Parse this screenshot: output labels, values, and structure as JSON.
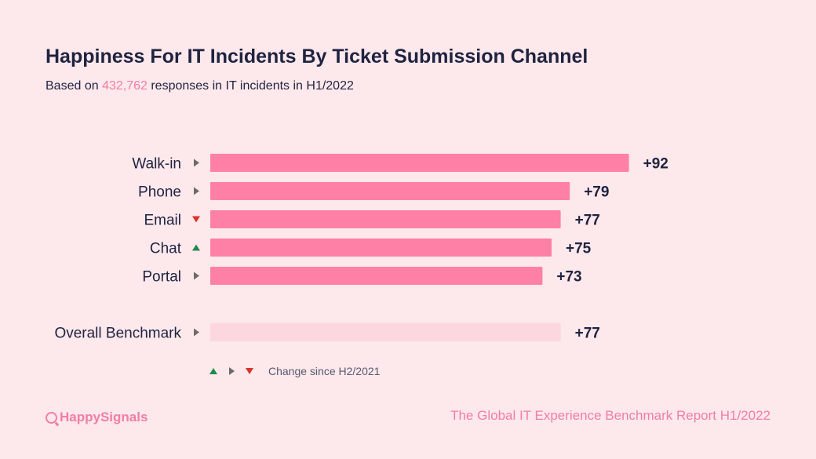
{
  "header": {
    "title": "Happiness For IT Incidents By Ticket Submission Channel",
    "subtitle_prefix": "Based on ",
    "subtitle_highlight": "432,762",
    "subtitle_suffix": " responses in IT incidents in H1/2022"
  },
  "chart_data": {
    "type": "bar",
    "orientation": "horizontal",
    "categories": [
      "Walk-in",
      "Phone",
      "Email",
      "Chat",
      "Portal"
    ],
    "values": [
      92,
      79,
      77,
      75,
      73
    ],
    "value_labels": [
      "+92",
      "+79",
      "+77",
      "+75",
      "+73"
    ],
    "change_indicators": [
      "neutral",
      "neutral",
      "down",
      "up",
      "neutral"
    ],
    "benchmark": {
      "label": "Overall Benchmark",
      "value": 77,
      "value_label": "+77",
      "change_indicator": "neutral"
    },
    "xlim": [
      0,
      100
    ],
    "grid": false,
    "legend": {
      "symbols": [
        "up",
        "neutral",
        "down"
      ],
      "text": "Change since H2/2021"
    }
  },
  "colors": {
    "bar": "#ff80a6",
    "benchmark_bar": "#fcd7e0",
    "up": "#1f8a4c",
    "down": "#d9342b",
    "neutral": "#6b6b6b",
    "text": "#1f2340",
    "accent": "#f27ea3",
    "background": "#fde8ec"
  },
  "footer": {
    "logo_text": "HappySignals",
    "report": "The Global IT Experience Benchmark Report H1/2022"
  }
}
